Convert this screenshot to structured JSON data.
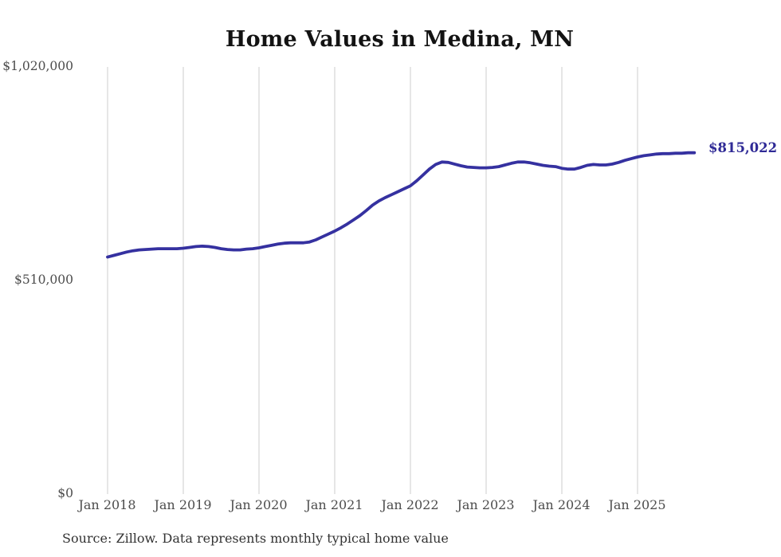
{
  "chart_data": {
    "type": "line",
    "title": "Home Values in Medina, MN",
    "xlabel": "",
    "ylabel": "",
    "ylim": [
      0,
      1020000
    ],
    "y_tick_values": [
      1020000,
      510000,
      0
    ],
    "y_tick_labels": [
      "$1,020,000",
      "$510,000",
      "$0"
    ],
    "x_tick_labels": [
      "Jan 2018",
      "Jan 2019",
      "Jan 2020",
      "Jan 2021",
      "Jan 2022",
      "Jan 2023",
      "Jan 2024",
      "Jan 2025"
    ],
    "grid": "vertical-only",
    "grid_color": "#cccccc",
    "line_color": "#3531a0",
    "end_label": "$815,022",
    "latest_value": 815022,
    "source_note": "Source: Zillow. Data represents monthly typical home value",
    "x": [
      "2018-01",
      "2018-02",
      "2018-03",
      "2018-04",
      "2018-05",
      "2018-06",
      "2018-07",
      "2018-08",
      "2018-09",
      "2018-10",
      "2018-11",
      "2018-12",
      "2019-01",
      "2019-02",
      "2019-03",
      "2019-04",
      "2019-05",
      "2019-06",
      "2019-07",
      "2019-08",
      "2019-09",
      "2019-10",
      "2019-11",
      "2019-12",
      "2020-01",
      "2020-02",
      "2020-03",
      "2020-04",
      "2020-05",
      "2020-06",
      "2020-07",
      "2020-08",
      "2020-09",
      "2020-10",
      "2020-11",
      "2020-12",
      "2021-01",
      "2021-02",
      "2021-03",
      "2021-04",
      "2021-05",
      "2021-06",
      "2021-07",
      "2021-08",
      "2021-09",
      "2021-10",
      "2021-11",
      "2021-12",
      "2022-01",
      "2022-02",
      "2022-03",
      "2022-04",
      "2022-05",
      "2022-06",
      "2022-07",
      "2022-08",
      "2022-09",
      "2022-10",
      "2022-11",
      "2022-12",
      "2023-01",
      "2023-02",
      "2023-03",
      "2023-04",
      "2023-05",
      "2023-06",
      "2023-07",
      "2023-08",
      "2023-09",
      "2023-10",
      "2023-11",
      "2023-12",
      "2024-01",
      "2024-02",
      "2024-03",
      "2024-04",
      "2024-05",
      "2024-06",
      "2024-07",
      "2024-08",
      "2024-09",
      "2024-10",
      "2024-11",
      "2024-12",
      "2025-01",
      "2025-02",
      "2025-03",
      "2025-04",
      "2025-05",
      "2025-06",
      "2025-07",
      "2025-08",
      "2025-09",
      "2025-10"
    ],
    "series": [
      {
        "name": "Typical home value",
        "values": [
          566000,
          570000,
          574000,
          578000,
          581000,
          583000,
          584000,
          585000,
          586000,
          586000,
          586000,
          586000,
          587000,
          589000,
          591000,
          592000,
          591000,
          589000,
          586000,
          584000,
          583000,
          583000,
          585000,
          586000,
          588000,
          591000,
          594000,
          597000,
          599000,
          600000,
          600000,
          600000,
          602000,
          607000,
          614000,
          621000,
          628000,
          636000,
          645000,
          655000,
          665000,
          677000,
          690000,
          700000,
          708000,
          715000,
          722000,
          729000,
          736000,
          748000,
          762000,
          776000,
          787000,
          793000,
          792000,
          788000,
          784000,
          781000,
          780000,
          779000,
          779000,
          780000,
          782000,
          786000,
          790000,
          793000,
          793000,
          791000,
          788000,
          785000,
          783000,
          782000,
          778000,
          776000,
          776000,
          780000,
          785000,
          787000,
          786000,
          786000,
          788000,
          792000,
          797000,
          801000,
          805000,
          808000,
          810000,
          812000,
          813000,
          813000,
          814000,
          814000,
          815000,
          815022
        ]
      }
    ]
  }
}
